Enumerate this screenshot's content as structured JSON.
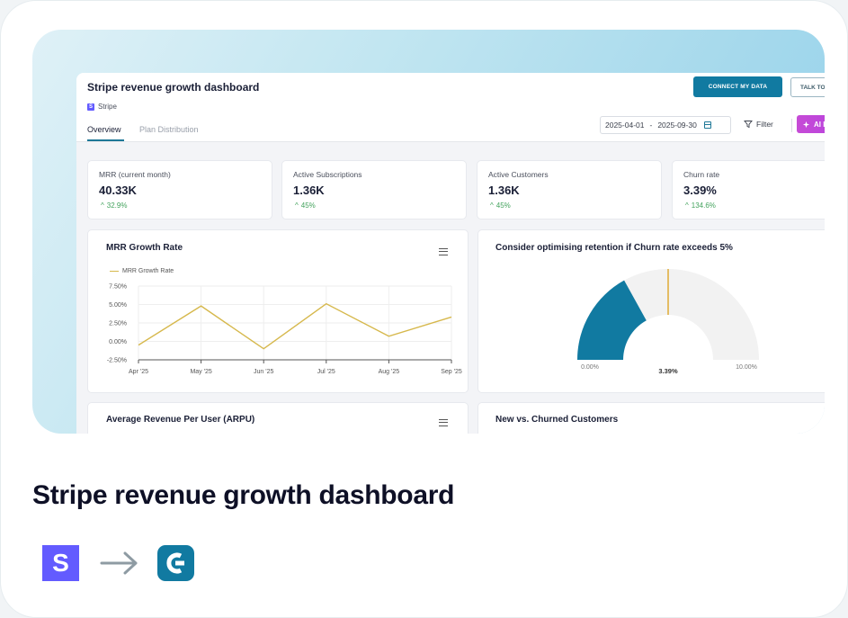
{
  "dashboard": {
    "title": "Stripe revenue growth dashboard",
    "source_badge": "S",
    "source_name": "Stripe",
    "tabs": [
      {
        "label": "Overview",
        "active": true
      },
      {
        "label": "Plan Distribution",
        "active": false
      }
    ],
    "buttons": {
      "connect": "CONNECT MY DATA",
      "talk": "TALK TO",
      "filter": "Filter",
      "ai": "AI I"
    },
    "date_range": {
      "start": "2025-04-01",
      "separator": "-",
      "end": "2025-09-30"
    },
    "accent_color": "#117aa1",
    "kpis": [
      {
        "label": "MRR (current month)",
        "value": "40.33K",
        "delta": "32.9%"
      },
      {
        "label": "Active Subscriptions",
        "value": "1.36K",
        "delta": "45%"
      },
      {
        "label": "Active Customers",
        "value": "1.36K",
        "delta": "45%"
      },
      {
        "label": "Churn rate",
        "value": "3.39%",
        "delta": "134.6%"
      }
    ],
    "panels": {
      "mrr_title": "MRR Growth Rate",
      "gauge_title": "Consider optimising retention if Churn rate exceeds 5%",
      "arpu_title": "Average Revenue Per User (ARPU)",
      "churn_title": "New vs. Churned Customers"
    }
  },
  "chart_data": [
    {
      "type": "line",
      "title": "MRR Growth Rate",
      "legend": [
        "MRR Growth Rate"
      ],
      "legend_position": "top-left",
      "categories": [
        "Apr '25",
        "May '25",
        "Jun '25",
        "Jul '25",
        "Aug '25",
        "Sep '25"
      ],
      "series": [
        {
          "name": "MRR Growth Rate",
          "values": [
            -0.5,
            4.8,
            -1.0,
            5.1,
            0.7,
            3.3
          ],
          "color": "#d6b84c"
        }
      ],
      "ylim": [
        -2.5,
        7.5
      ],
      "yticks": [
        "-2.50%",
        "0.00%",
        "2.50%",
        "5.00%",
        "7.50%"
      ],
      "ytick_values": [
        -2.5,
        0,
        2.5,
        5,
        7.5
      ],
      "grid": true
    },
    {
      "type": "gauge",
      "title": "Consider optimising retention if Churn rate exceeds 5%",
      "value": 3.39,
      "value_label": "3.39%",
      "min": 0,
      "max": 10,
      "min_label": "0.00%",
      "max_label": "10.00%",
      "threshold": 5,
      "fill_color": "#117aa1",
      "track_color": "#f2f2f2",
      "threshold_color": "#e0b040"
    }
  ],
  "footer": {
    "title": "Stripe revenue growth dashboard",
    "source_logo": "S",
    "arrow": "→"
  }
}
